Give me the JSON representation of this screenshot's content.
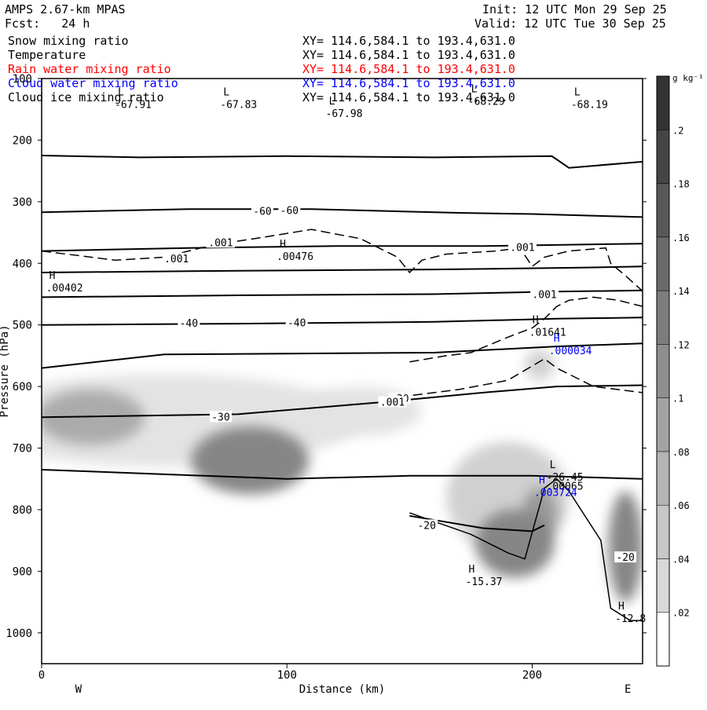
{
  "header": {
    "model": "AMPS 2.67-km MPAS",
    "forecast": "Fcst:   24 h",
    "init": "Init: 12 UTC Mon 29 Sep 25",
    "valid": "Valid: 12 UTC Tue 30 Sep 25"
  },
  "fields": [
    {
      "name": "Snow mixing ratio",
      "xy": "XY= 114.6,584.1 to 193.4,631.0",
      "color": "#000000"
    },
    {
      "name": "Temperature",
      "xy": "XY= 114.6,584.1 to 193.4,631.0",
      "color": "#000000"
    },
    {
      "name": "Rain water mixing ratio",
      "xy": "XY= 114.6,584.1 to 193.4,631.0",
      "color": "#ff0000"
    },
    {
      "name": "Cloud water mixing ratio",
      "xy": "XY= 114.6,584.1 to 193.4,631.0",
      "color": "#0000ff"
    },
    {
      "name": "Cloud ice mixing ratio",
      "xy": "XY= 114.6,584.1 to 193.4,631.0",
      "color": "#000000"
    }
  ],
  "chart_data": {
    "type": "contour",
    "ylabel": "Pressure (hPa)",
    "xlabel": "Distance (km)",
    "x_direction_left": "W",
    "x_direction_right": "E",
    "xlim": [
      0,
      245
    ],
    "ylim": [
      1050,
      100
    ],
    "x_ticks": [
      0,
      100,
      200
    ],
    "y_ticks": [
      100,
      200,
      300,
      400,
      500,
      600,
      700,
      800,
      900,
      1000
    ],
    "colorbar": {
      "units": "g kg⁻¹",
      "ticks": [
        ".02",
        ".04",
        ".06",
        ".08",
        ".1",
        ".12",
        ".14",
        ".16",
        ".18",
        ".2"
      ]
    },
    "temperature_lines": [
      {
        "points": [
          [
            0,
            225
          ],
          [
            40,
            228
          ],
          [
            100,
            226
          ],
          [
            160,
            228
          ],
          [
            208,
            226
          ],
          [
            215,
            245
          ],
          [
            245,
            235
          ]
        ]
      },
      {
        "points": [
          [
            0,
            317
          ],
          [
            60,
            312
          ],
          [
            110,
            312
          ],
          [
            170,
            318
          ],
          [
            200,
            320
          ],
          [
            245,
            325
          ]
        ]
      },
      {
        "points": [
          [
            0,
            380
          ],
          [
            60,
            375
          ],
          [
            120,
            372
          ],
          [
            180,
            372
          ],
          [
            245,
            368
          ]
        ]
      },
      {
        "points": [
          [
            0,
            415
          ],
          [
            80,
            412
          ],
          [
            160,
            410
          ],
          [
            220,
            407
          ],
          [
            245,
            405
          ]
        ]
      },
      {
        "points": [
          [
            0,
            455
          ],
          [
            80,
            452
          ],
          [
            160,
            450
          ],
          [
            210,
            446
          ],
          [
            245,
            444
          ]
        ]
      },
      {
        "points": [
          [
            0,
            500
          ],
          [
            80,
            498
          ],
          [
            160,
            495
          ],
          [
            210,
            490
          ],
          [
            245,
            488
          ]
        ]
      },
      {
        "points": [
          [
            0,
            570
          ],
          [
            50,
            548
          ],
          [
            160,
            545
          ],
          [
            210,
            535
          ],
          [
            245,
            530
          ]
        ]
      },
      {
        "points": [
          [
            0,
            650
          ],
          [
            80,
            645
          ],
          [
            140,
            625
          ],
          [
            180,
            610
          ],
          [
            210,
            600
          ],
          [
            245,
            598
          ]
        ]
      },
      {
        "points": [
          [
            0,
            735
          ],
          [
            100,
            750
          ],
          [
            150,
            745
          ],
          [
            200,
            745
          ],
          [
            245,
            750
          ]
        ]
      },
      {
        "points": [
          [
            150,
            810
          ],
          [
            180,
            830
          ],
          [
            200,
            835
          ],
          [
            205,
            825
          ]
        ]
      }
    ],
    "temperature_labels": [
      {
        "x": 90,
        "p": 316,
        "text": "-60"
      },
      {
        "x": 101,
        "p": 315,
        "text": "-60"
      },
      {
        "x": 60,
        "p": 498,
        "text": "-40"
      },
      {
        "x": 104,
        "p": 497,
        "text": "-40"
      },
      {
        "x": 73,
        "p": 650,
        "text": "-30"
      },
      {
        "x": 146,
        "p": 620,
        "text": "-30"
      },
      {
        "x": 157,
        "p": 826,
        "text": "-20"
      },
      {
        "x": 238,
        "p": 878,
        "text": "-20"
      }
    ],
    "ice_contours": [
      {
        "points": [
          [
            0,
            380
          ],
          [
            30,
            395
          ],
          [
            50,
            390
          ],
          [
            70,
            370
          ],
          [
            90,
            358
          ],
          [
            110,
            345
          ],
          [
            130,
            360
          ],
          [
            145,
            390
          ],
          [
            150,
            415
          ],
          [
            155,
            395
          ],
          [
            165,
            385
          ],
          [
            185,
            380
          ],
          [
            195,
            375
          ],
          [
            200,
            405
          ],
          [
            205,
            390
          ],
          [
            215,
            380
          ],
          [
            230,
            375
          ],
          [
            232,
            400
          ],
          [
            238,
            420
          ],
          [
            245,
            445
          ]
        ]
      },
      {
        "points": [
          [
            150,
            560
          ],
          [
            165,
            550
          ],
          [
            175,
            545
          ],
          [
            190,
            520
          ],
          [
            200,
            505
          ],
          [
            205,
            490
          ],
          [
            210,
            470
          ],
          [
            215,
            460
          ],
          [
            225,
            455
          ],
          [
            235,
            460
          ],
          [
            245,
            470
          ]
        ]
      },
      {
        "points": [
          [
            140,
            620
          ],
          [
            170,
            605
          ],
          [
            190,
            590
          ],
          [
            205,
            555
          ],
          [
            210,
            570
          ],
          [
            225,
            600
          ],
          [
            245,
            610
          ]
        ]
      }
    ],
    "ice_labels": [
      {
        "x": 73,
        "p": 367,
        "text": ".001"
      },
      {
        "x": 55,
        "p": 393,
        "text": ".001"
      },
      {
        "x": 196,
        "p": 375,
        "text": ".001"
      },
      {
        "x": 205,
        "p": 451,
        "text": ".001"
      },
      {
        "x": 143,
        "p": 626,
        "text": ".001"
      }
    ],
    "snow_shading": [
      {
        "x": 20,
        "p": 650,
        "rx": 22,
        "rp": 45,
        "value": 0.08
      },
      {
        "x": 85,
        "p": 720,
        "rx": 24,
        "rp": 55,
        "value": 0.12
      },
      {
        "x": 50,
        "p": 655,
        "rx": 80,
        "rp": 75,
        "value": 0.02
      },
      {
        "x": 130,
        "p": 640,
        "rx": 25,
        "rp": 40,
        "value": 0.02
      },
      {
        "x": 190,
        "p": 780,
        "rx": 25,
        "rp": 90,
        "value": 0.04
      },
      {
        "x": 193,
        "p": 855,
        "rx": 16,
        "rp": 55,
        "value": 0.12
      },
      {
        "x": 203,
        "p": 805,
        "rx": 7,
        "rp": 40,
        "value": 0.1
      },
      {
        "x": 238,
        "p": 860,
        "rx": 7,
        "rp": 90,
        "value": 0.12
      },
      {
        "x": 203,
        "p": 565,
        "rx": 6,
        "rp": 25,
        "value": 0.04
      }
    ],
    "extrema_labels": [
      {
        "x": 33,
        "p": 140,
        "sym": "L",
        "value": "-67.91"
      },
      {
        "x": 76,
        "p": 140,
        "sym": "L",
        "value": "-67.83"
      },
      {
        "x": 119,
        "p": 155,
        "sym": "L",
        "value": "-67.98"
      },
      {
        "x": 177,
        "p": 135,
        "sym": "L",
        "value": "-68.29"
      },
      {
        "x": 219,
        "p": 140,
        "sym": "L",
        "value": "-68.19"
      },
      {
        "x": 99,
        "p": 387,
        "sym": "H",
        "value": ".00476"
      },
      {
        "x": 5,
        "p": 438,
        "sym": "H",
        "value": ".00402"
      },
      {
        "x": 202,
        "p": 510,
        "sym": "H",
        "value": ".01641"
      },
      {
        "x": 209,
        "p": 745,
        "sym": "L",
        "value": "-26.45"
      },
      {
        "x": 209,
        "p": 760,
        "sym": "",
        "value": ".00065"
      },
      {
        "x": 176,
        "p": 915,
        "sym": "H",
        "value": "-15.37"
      },
      {
        "x": 237,
        "p": 975,
        "sym": "H",
        "value": "-12.8"
      }
    ],
    "cloud_water_labels": [
      {
        "x": 210,
        "p": 540,
        "sym": "H",
        "value": ".000034"
      },
      {
        "x": 204,
        "p": 770,
        "sym": "H",
        "value": ".003724"
      }
    ],
    "terrain_outline": [
      [
        150,
        805
      ],
      [
        175,
        840
      ],
      [
        190,
        870
      ],
      [
        197,
        880
      ],
      [
        205,
        765
      ],
      [
        210,
        750
      ],
      [
        215,
        770
      ],
      [
        228,
        850
      ],
      [
        232,
        960
      ],
      [
        240,
        980
      ],
      [
        245,
        980
      ]
    ]
  }
}
